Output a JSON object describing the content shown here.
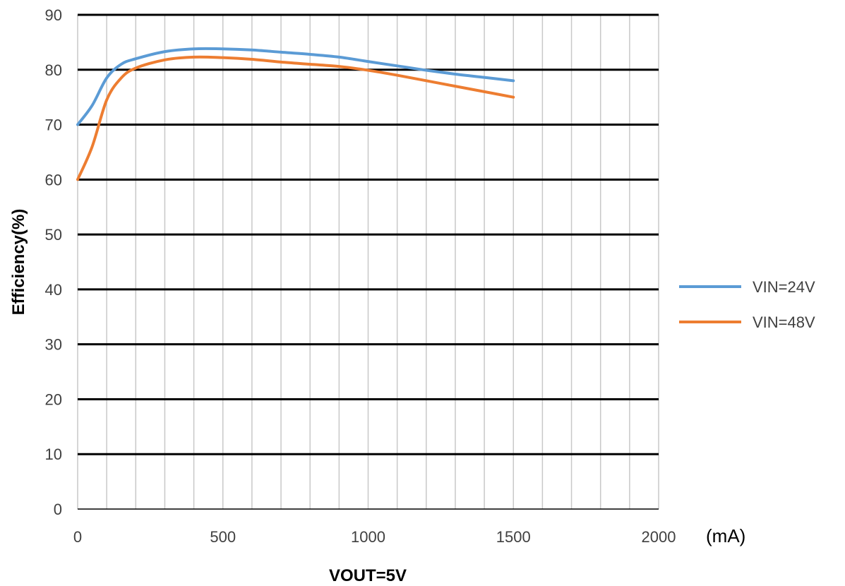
{
  "chart_data": {
    "type": "line",
    "title": "",
    "xlabel": "VOUT=5V",
    "ylabel": "Efficiency(%)",
    "x_unit": "(mA)",
    "xlim": [
      0,
      2000
    ],
    "ylim": [
      0,
      90
    ],
    "x_ticks": [
      0,
      500,
      1000,
      1500,
      2000
    ],
    "y_ticks": [
      0,
      10,
      20,
      30,
      40,
      50,
      60,
      70,
      80,
      90
    ],
    "grid": true,
    "legend_position": "right",
    "series": [
      {
        "name": "VIN=24V",
        "color": "#5b9bd5",
        "x": [
          0,
          50,
          100,
          150,
          200,
          300,
          400,
          500,
          600,
          700,
          800,
          900,
          1000,
          1100,
          1200,
          1300,
          1400,
          1500
        ],
        "y": [
          70,
          73.5,
          78.5,
          81,
          82,
          83.3,
          83.8,
          83.8,
          83.6,
          83.2,
          82.8,
          82.3,
          81.5,
          80.7,
          79.9,
          79.2,
          78.6,
          78
        ]
      },
      {
        "name": "VIN=48V",
        "color": "#ed7d31",
        "x": [
          0,
          50,
          100,
          150,
          200,
          300,
          400,
          500,
          600,
          700,
          800,
          900,
          1000,
          1100,
          1200,
          1300,
          1400,
          1500
        ],
        "y": [
          60,
          66,
          74.5,
          78.5,
          80.3,
          81.8,
          82.3,
          82.2,
          81.9,
          81.4,
          81,
          80.6,
          79.9,
          79,
          78,
          77,
          76,
          75
        ]
      }
    ]
  }
}
